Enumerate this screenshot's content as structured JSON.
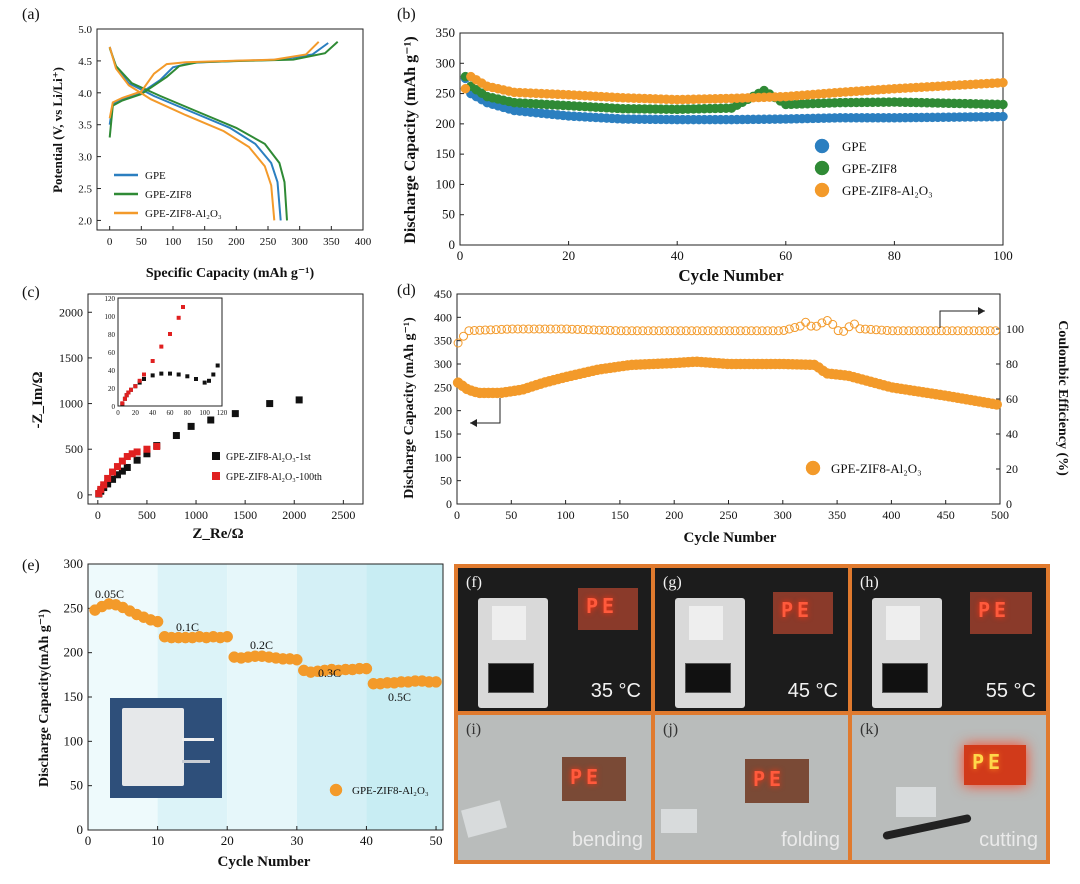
{
  "panel_labels": {
    "a": "(a)",
    "b": "(b)",
    "c": "(c)",
    "d": "(d)",
    "e": "(e)",
    "f": "(f)",
    "g": "(g)",
    "h": "(h)",
    "i": "(i)",
    "j": "(j)",
    "k": "(k)"
  },
  "colors": {
    "gpe": "#2b7fc0",
    "zif8": "#2f8a35",
    "al2o3": "#f39a2a",
    "led": "#ff5a3c",
    "photo_border": "#e07a2e"
  },
  "photos": {
    "f": {
      "caption": "35 °C",
      "led_text": "PE"
    },
    "g": {
      "caption": "45 °C",
      "led_text": "PE"
    },
    "h": {
      "caption": "55 °C",
      "led_text": "PE"
    },
    "i": {
      "caption": "bending",
      "led_text": "PE"
    },
    "j": {
      "caption": "folding",
      "led_text": "PE"
    },
    "k": {
      "caption": "cutting",
      "led_text": "PE"
    }
  },
  "chart_data": [
    {
      "id": "a",
      "type": "line",
      "xlabel": "Specific Capacity (mAh g⁻¹)",
      "ylabel": "Potential (V, vs Li/Li⁺)",
      "xlim": [
        -20,
        400
      ],
      "ylim": [
        1.85,
        5.0
      ],
      "xticks": [
        "0",
        "50",
        "100",
        "150",
        "200",
        "250",
        "300",
        "350",
        "400"
      ],
      "yticks": [
        "2.0",
        "2.5",
        "3.0",
        "3.5",
        "4.0",
        "4.5",
        "5.0"
      ],
      "legend": "bottom-left",
      "series": [
        {
          "name": "GPE",
          "color": "#2b7fc0",
          "charge": [
            [
              0,
              3.5
            ],
            [
              5,
              3.82
            ],
            [
              20,
              3.9
            ],
            [
              50,
              4.0
            ],
            [
              80,
              4.2
            ],
            [
              100,
              4.4
            ],
            [
              130,
              4.47
            ],
            [
              200,
              4.5
            ],
            [
              270,
              4.52
            ],
            [
              320,
              4.6
            ],
            [
              345,
              4.78
            ]
          ],
          "discharge": [
            [
              0,
              4.72
            ],
            [
              10,
              4.4
            ],
            [
              30,
              4.15
            ],
            [
              70,
              3.95
            ],
            [
              130,
              3.7
            ],
            [
              190,
              3.45
            ],
            [
              230,
              3.2
            ],
            [
              255,
              2.9
            ],
            [
              265,
              2.6
            ],
            [
              270,
              2.0
            ]
          ]
        },
        {
          "name": "GPE-ZIF8",
          "color": "#2f8a35",
          "charge": [
            [
              0,
              3.3
            ],
            [
              5,
              3.8
            ],
            [
              20,
              3.88
            ],
            [
              50,
              3.98
            ],
            [
              90,
              4.25
            ],
            [
              110,
              4.42
            ],
            [
              140,
              4.48
            ],
            [
              210,
              4.5
            ],
            [
              290,
              4.52
            ],
            [
              340,
              4.62
            ],
            [
              360,
              4.8
            ]
          ],
          "discharge": [
            [
              0,
              4.7
            ],
            [
              10,
              4.42
            ],
            [
              35,
              4.15
            ],
            [
              80,
              3.95
            ],
            [
              140,
              3.7
            ],
            [
              200,
              3.45
            ],
            [
              245,
              3.2
            ],
            [
              268,
              2.9
            ],
            [
              276,
              2.6
            ],
            [
              280,
              2.0
            ]
          ]
        },
        {
          "name": "GPE-ZIF8-Al₂O₃",
          "color": "#f39a2a",
          "charge": [
            [
              0,
              3.6
            ],
            [
              5,
              3.85
            ],
            [
              20,
              3.92
            ],
            [
              50,
              4.02
            ],
            [
              70,
              4.3
            ],
            [
              90,
              4.45
            ],
            [
              120,
              4.48
            ],
            [
              190,
              4.5
            ],
            [
              260,
              4.52
            ],
            [
              310,
              4.6
            ],
            [
              330,
              4.8
            ]
          ],
          "discharge": [
            [
              0,
              4.72
            ],
            [
              10,
              4.38
            ],
            [
              30,
              4.12
            ],
            [
              65,
              3.9
            ],
            [
              120,
              3.65
            ],
            [
              180,
              3.4
            ],
            [
              220,
              3.15
            ],
            [
              245,
              2.85
            ],
            [
              255,
              2.55
            ],
            [
              260,
              2.0
            ]
          ]
        }
      ]
    },
    {
      "id": "b",
      "type": "scatter",
      "xlabel": "Cycle Number",
      "ylabel": "Discharge Capacity (mAh g⁻¹)",
      "xlim": [
        0,
        100
      ],
      "ylim": [
        0,
        350
      ],
      "xticks": [
        "0",
        "20",
        "40",
        "60",
        "80",
        "100"
      ],
      "yticks": [
        "0",
        "50",
        "100",
        "150",
        "200",
        "250",
        "300",
        "350"
      ],
      "legend": "right",
      "series": [
        {
          "name": "GPE",
          "color": "#2b7fc0",
          "x": [
            1,
            2,
            5,
            10,
            20,
            30,
            40,
            50,
            60,
            70,
            80,
            90,
            100
          ],
          "y": [
            275,
            250,
            235,
            222,
            213,
            208,
            207,
            207,
            208,
            210,
            210,
            211,
            212
          ]
        },
        {
          "name": "GPE-ZIF8",
          "color": "#2f8a35",
          "x": [
            1,
            2,
            5,
            10,
            20,
            30,
            40,
            50,
            56,
            60,
            70,
            80,
            90,
            100
          ],
          "y": [
            278,
            262,
            245,
            235,
            230,
            225,
            224,
            226,
            255,
            232,
            235,
            236,
            234,
            232
          ]
        },
        {
          "name": "GPE-ZIF8-Al₂O₃",
          "color": "#f39a2a",
          "x": [
            1,
            2,
            5,
            10,
            20,
            30,
            40,
            50,
            60,
            70,
            80,
            90,
            100
          ],
          "y": [
            258,
            278,
            262,
            252,
            248,
            243,
            240,
            242,
            245,
            252,
            258,
            263,
            268
          ]
        }
      ]
    },
    {
      "id": "c",
      "type": "scatter",
      "xlabel": "Z_Re/Ω",
      "ylabel": "-Z_Im/Ω",
      "xlim": [
        -100,
        2700
      ],
      "ylim": [
        -100,
        2200
      ],
      "xticks": [
        "0",
        "500",
        "1000",
        "1500",
        "2000",
        "2500"
      ],
      "yticks": [
        "0",
        "500",
        "1000",
        "1500",
        "2000"
      ],
      "legend": "bottom-right",
      "series": [
        {
          "name": "GPE-ZIF8-Al₂O₃-1st",
          "color": "#111111",
          "x": [
            10,
            30,
            60,
            100,
            150,
            200,
            250,
            300,
            400,
            500,
            600,
            800,
            950,
            1150,
            1400,
            1750,
            2050
          ],
          "y": [
            10,
            40,
            80,
            120,
            170,
            220,
            260,
            300,
            380,
            450,
            540,
            650,
            750,
            820,
            890,
            1000,
            1040
          ]
        },
        {
          "name": "GPE-ZIF8-Al₂O₃-100th",
          "color": "#e02020",
          "x": [
            10,
            30,
            60,
            100,
            150,
            200,
            250,
            300,
            350,
            400,
            500,
            600
          ],
          "y": [
            15,
            60,
            110,
            180,
            250,
            310,
            370,
            420,
            450,
            470,
            500,
            530
          ]
        }
      ],
      "inset": {
        "xlim": [
          0,
          120
        ],
        "ylim": [
          0,
          120
        ],
        "xticks": [
          "0",
          "20",
          "40",
          "60",
          "80",
          "100",
          "120"
        ],
        "yticks": [
          "0",
          "20",
          "40",
          "60",
          "80",
          "100",
          "120"
        ],
        "series": [
          {
            "name": "1st",
            "color": "#111111",
            "x": [
              5,
              8,
              10,
              12,
              15,
              20,
              25,
              30,
              40,
              50,
              60,
              70,
              80,
              90,
              100,
              105,
              110,
              115
            ],
            "y": [
              2,
              8,
              12,
              15,
              18,
              22,
              26,
              30,
              34,
              36,
              36,
              35,
              33,
              30,
              26,
              28,
              35,
              45
            ]
          },
          {
            "name": "100th",
            "color": "#e02020",
            "x": [
              5,
              8,
              10,
              12,
              15,
              20,
              25,
              30,
              40,
              50,
              60,
              70,
              75
            ],
            "y": [
              3,
              8,
              12,
              15,
              18,
              22,
              28,
              35,
              50,
              66,
              80,
              98,
              110
            ]
          }
        ]
      }
    },
    {
      "id": "d",
      "type": "scatter",
      "xlabel": "Cycle Number",
      "ylabel": "Discharge Capacity (mAh g⁻¹)",
      "y2label": "Coulombic Efficiency (%)",
      "xlim": [
        0,
        500
      ],
      "ylim": [
        0,
        450
      ],
      "y2lim": [
        0,
        120
      ],
      "xticks": [
        "0",
        "50",
        "100",
        "150",
        "200",
        "250",
        "300",
        "350",
        "400",
        "450",
        "500"
      ],
      "yticks": [
        "0",
        "50",
        "100",
        "150",
        "200",
        "250",
        "300",
        "350",
        "400",
        "450"
      ],
      "y2ticks": [
        "0",
        "20",
        "40",
        "60",
        "80",
        "100"
      ],
      "legend": "bottom-right",
      "series": [
        {
          "name": "GPE-ZIF8-Al₂O₃",
          "color": "#f39a2a",
          "axis": "left",
          "x": [
            1,
            10,
            20,
            40,
            60,
            80,
            100,
            130,
            160,
            200,
            220,
            250,
            300,
            330,
            340,
            360,
            400,
            450,
            500
          ],
          "y": [
            260,
            245,
            238,
            238,
            245,
            260,
            272,
            288,
            298,
            302,
            305,
            300,
            300,
            298,
            280,
            275,
            250,
            232,
            212
          ]
        },
        {
          "name": "Coulombic Efficiency",
          "color": "#f39a2a",
          "axis": "right",
          "hollow": true,
          "x": [
            1,
            10,
            50,
            100,
            150,
            200,
            250,
            300,
            330,
            350,
            400,
            450,
            500
          ],
          "y": [
            92,
            99,
            100,
            100,
            99,
            99,
            99,
            99,
            104,
            101,
            99,
            99,
            99
          ]
        }
      ]
    },
    {
      "id": "e",
      "type": "scatter",
      "xlabel": "Cycle Number",
      "ylabel": "Discharge Capacity(mAh g⁻¹)",
      "xlim": [
        0,
        51
      ],
      "ylim": [
        0,
        300
      ],
      "xticks": [
        "0",
        "10",
        "20",
        "30",
        "40",
        "50"
      ],
      "yticks": [
        "0",
        "50",
        "100",
        "150",
        "200",
        "250",
        "300"
      ],
      "legend": "bottom-right",
      "rates": [
        "0.05C",
        "0.1C",
        "0.2C",
        "0.3C",
        "0.5C"
      ],
      "series": [
        {
          "name": "GPE-ZIF8-Al₂O₃",
          "color": "#f39a2a",
          "x": [
            1,
            2,
            3,
            4,
            5,
            6,
            7,
            8,
            9,
            10,
            11,
            12,
            13,
            14,
            15,
            16,
            17,
            18,
            19,
            20,
            21,
            22,
            23,
            24,
            25,
            26,
            27,
            28,
            29,
            30,
            31,
            32,
            33,
            34,
            35,
            36,
            37,
            38,
            39,
            40,
            41,
            42,
            43,
            44,
            45,
            46,
            47,
            48,
            49,
            50
          ],
          "y": [
            248,
            252,
            255,
            254,
            251,
            247,
            243,
            240,
            237,
            235,
            218,
            217,
            217,
            217,
            217,
            218,
            217,
            218,
            217,
            218,
            195,
            194,
            195,
            196,
            196,
            195,
            194,
            193,
            193,
            192,
            180,
            178,
            179,
            180,
            181,
            180,
            181,
            181,
            182,
            182,
            165,
            165,
            166,
            166,
            167,
            167,
            168,
            168,
            167,
            167
          ]
        }
      ]
    }
  ]
}
